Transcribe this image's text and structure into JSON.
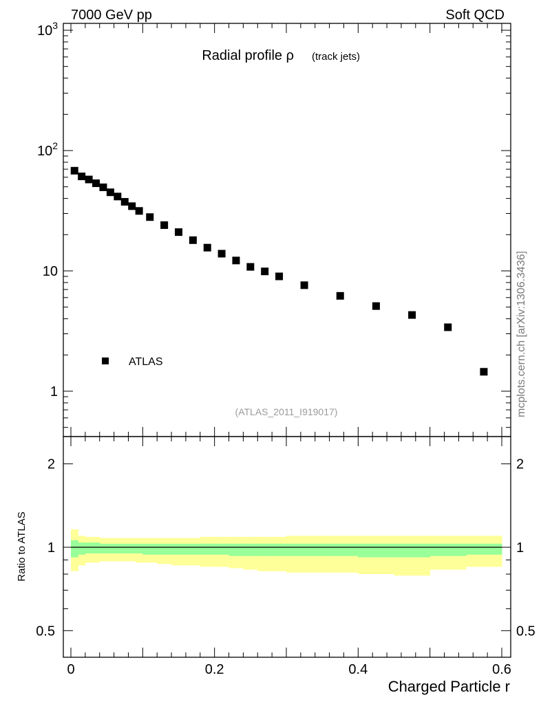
{
  "header": {
    "left": "7000 GeV pp",
    "right": "Soft QCD"
  },
  "side_label": "mcplots.cern.ch [arXiv:1306.3436]",
  "analysis_tag": "(ATLAS_2011_I919017)",
  "colors": {
    "data": "#000000",
    "band_outer": "#ffff99",
    "band_inner": "#99ff99"
  },
  "chart_data": [
    {
      "type": "scatter",
      "panel": "main",
      "title": "Radial profile ρ",
      "subtitle": "(track jets)",
      "ylabel": "",
      "yscale": "log",
      "ylim": [
        0.5,
        1100
      ],
      "xlim": [
        -0.01,
        0.61
      ],
      "y_tick_labels": [
        "1",
        "10",
        "10^2",
        "10^3"
      ],
      "legend": {
        "position": "bottom-left",
        "entries": [
          "ATLAS"
        ]
      },
      "series": [
        {
          "name": "ATLAS",
          "x": [
            0.005,
            0.015,
            0.025,
            0.035,
            0.045,
            0.055,
            0.065,
            0.075,
            0.085,
            0.095,
            0.11,
            0.13,
            0.15,
            0.17,
            0.19,
            0.21,
            0.23,
            0.25,
            0.27,
            0.29,
            0.325,
            0.375,
            0.425,
            0.475,
            0.525,
            0.575
          ],
          "y": [
            68,
            61,
            57.5,
            53.5,
            49.5,
            45,
            41.5,
            37.5,
            34.5,
            31.5,
            28,
            24,
            21,
            18,
            15.6,
            13.9,
            12.2,
            10.8,
            9.9,
            9.0,
            7.6,
            6.2,
            5.1,
            4.3,
            3.4,
            1.45
          ]
        }
      ]
    },
    {
      "type": "area",
      "panel": "ratio",
      "ylabel": "Ratio to ATLAS",
      "xlabel": "Charged Particle r",
      "yscale": "log",
      "ylim": [
        0.4,
        2.5
      ],
      "xlim": [
        -0.01,
        0.61
      ],
      "y_tick_labels": [
        "0.5",
        "1",
        "2"
      ],
      "x_tick_labels": [
        "0",
        "0.2",
        "0.4",
        "0.6"
      ],
      "reference_line": 1.0,
      "bins": [
        0,
        0.01,
        0.02,
        0.03,
        0.04,
        0.05,
        0.06,
        0.07,
        0.08,
        0.09,
        0.1,
        0.12,
        0.14,
        0.16,
        0.18,
        0.2,
        0.22,
        0.24,
        0.26,
        0.28,
        0.3,
        0.35,
        0.4,
        0.45,
        0.5,
        0.55,
        0.6
      ],
      "outer_band_low": [
        0.82,
        0.86,
        0.88,
        0.88,
        0.89,
        0.89,
        0.89,
        0.89,
        0.89,
        0.88,
        0.88,
        0.87,
        0.86,
        0.86,
        0.85,
        0.85,
        0.84,
        0.83,
        0.82,
        0.82,
        0.81,
        0.81,
        0.8,
        0.79,
        0.83,
        0.85
      ],
      "outer_band_high": [
        1.16,
        1.1,
        1.09,
        1.09,
        1.08,
        1.08,
        1.08,
        1.08,
        1.08,
        1.08,
        1.08,
        1.08,
        1.08,
        1.08,
        1.09,
        1.09,
        1.09,
        1.09,
        1.09,
        1.09,
        1.1,
        1.1,
        1.1,
        1.1,
        1.1,
        1.1
      ],
      "inner_band_low": [
        0.92,
        0.94,
        0.95,
        0.95,
        0.95,
        0.95,
        0.95,
        0.95,
        0.95,
        0.95,
        0.94,
        0.94,
        0.94,
        0.94,
        0.94,
        0.94,
        0.93,
        0.93,
        0.93,
        0.93,
        0.93,
        0.93,
        0.92,
        0.92,
        0.93,
        0.94
      ],
      "inner_band_high": [
        1.06,
        1.04,
        1.04,
        1.04,
        1.03,
        1.03,
        1.03,
        1.03,
        1.03,
        1.03,
        1.03,
        1.03,
        1.03,
        1.03,
        1.03,
        1.03,
        1.03,
        1.03,
        1.03,
        1.03,
        1.03,
        1.03,
        1.03,
        1.03,
        1.03,
        1.03
      ]
    }
  ]
}
